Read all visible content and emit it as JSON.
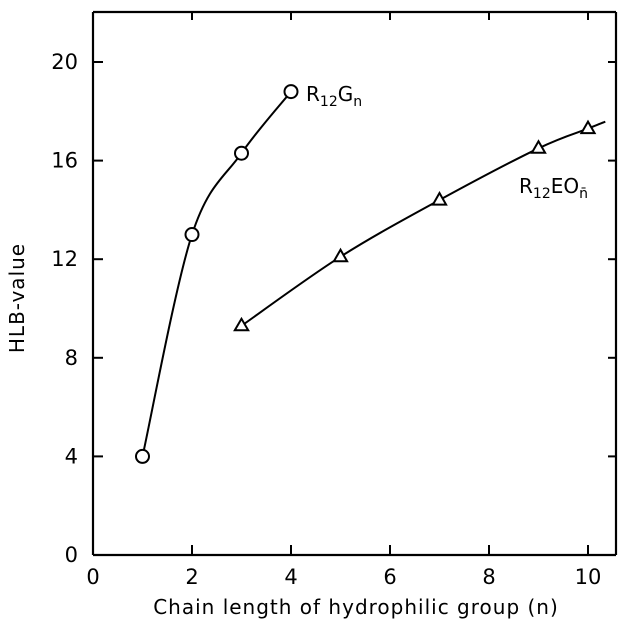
{
  "chart_data": {
    "type": "line",
    "title": "",
    "xlabel": "Chain length of hydrophilic group  (n)",
    "ylabel": "HLB-value",
    "xlim": [
      0,
      11
    ],
    "ylim": [
      0,
      22
    ],
    "xticks": [
      0,
      2,
      4,
      6,
      8,
      10
    ],
    "yticks": [
      0,
      4,
      8,
      12,
      16,
      20
    ],
    "grid": false,
    "series": [
      {
        "label": {
          "base": "R",
          "sub1": "12",
          "mid": "G",
          "sub2": "n"
        },
        "marker": "circle",
        "x": [
          1,
          2,
          3,
          4
        ],
        "y": [
          4.0,
          13.0,
          16.3,
          18.8
        ]
      },
      {
        "label": {
          "base": "R",
          "sub1": "12",
          "mid": "EO",
          "sub2": "n̄"
        },
        "marker": "triangle",
        "x": [
          3,
          5,
          7,
          9,
          10
        ],
        "y": [
          9.3,
          12.1,
          14.4,
          16.5,
          17.3
        ]
      }
    ]
  }
}
